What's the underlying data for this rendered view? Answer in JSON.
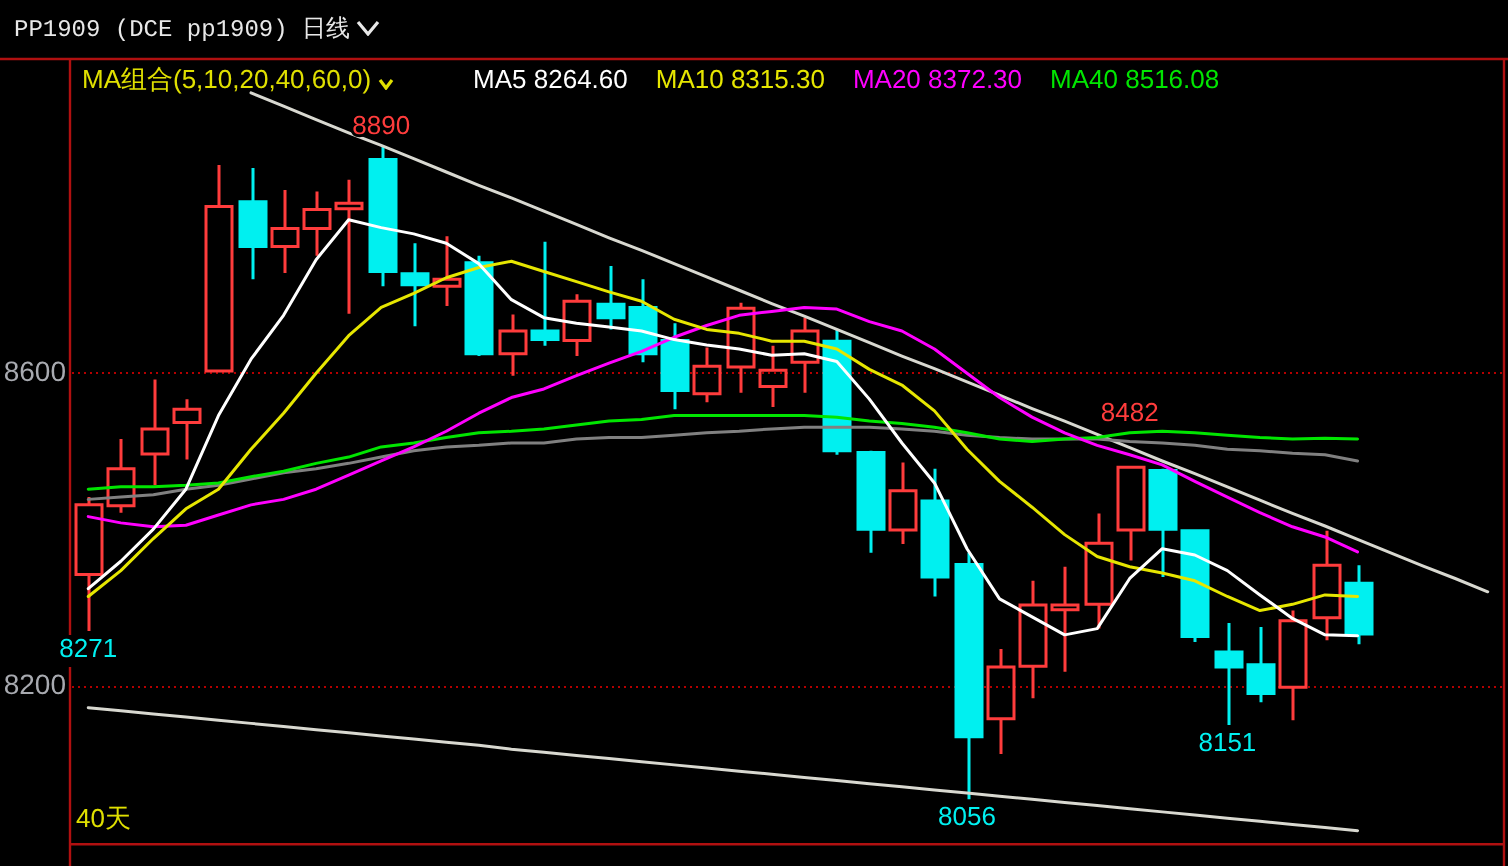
{
  "chart_data": {
    "type": "candlestick",
    "title": "PP1909 (DCE pp1909) 日线",
    "legend_title": "MA组合(5,10,20,40,60,0)",
    "categories": [
      null,
      null,
      null,
      null,
      null,
      null,
      null,
      null,
      null,
      null,
      null,
      null,
      null,
      null,
      null,
      null,
      null,
      null,
      null,
      null,
      null,
      null,
      null,
      null,
      null,
      null,
      null,
      null,
      null,
      null,
      null,
      null,
      null,
      null,
      null,
      null,
      null,
      null,
      null,
      null,
      null,
      null,
      null,
      null
    ],
    "ohlc": [
      [
        8343,
        8442,
        8271,
        8432
      ],
      [
        8431,
        8516,
        8422,
        8478
      ],
      [
        8497,
        8592,
        8457,
        8529
      ],
      [
        8537,
        8567,
        8490,
        8554
      ],
      [
        8603,
        8866,
        8601,
        8813
      ],
      [
        8819,
        8862,
        8720,
        8762
      ],
      [
        8762,
        8834,
        8728,
        8785
      ],
      [
        8785,
        8832,
        8750,
        8809
      ],
      [
        8810,
        8847,
        8676,
        8817
      ],
      [
        8873,
        8890,
        8711,
        8730
      ],
      [
        8727,
        8766,
        8660,
        8713
      ],
      [
        8711,
        8775,
        8686,
        8720
      ],
      [
        8741,
        8750,
        8622,
        8625
      ],
      [
        8625,
        8675,
        8597,
        8654
      ],
      [
        8654,
        8768,
        8635,
        8643
      ],
      [
        8642,
        8701,
        8622,
        8692
      ],
      [
        8688,
        8737,
        8656,
        8671
      ],
      [
        8684,
        8720,
        8614,
        8625
      ],
      [
        8642,
        8664,
        8554,
        8578
      ],
      [
        8574,
        8633,
        8563,
        8609
      ],
      [
        8608,
        8690,
        8575,
        8683
      ],
      [
        8583,
        8635,
        8557,
        8604
      ],
      [
        8614,
        8671,
        8575,
        8654
      ],
      [
        8641,
        8656,
        8496,
        8501
      ],
      [
        8499,
        8501,
        8371,
        8401
      ],
      [
        8400,
        8486,
        8382,
        8450
      ],
      [
        8437,
        8478,
        8315,
        8340
      ],
      [
        8356,
        8371,
        8056,
        8136
      ],
      [
        8159,
        8248,
        8114,
        8225
      ],
      [
        8226,
        8335,
        8185,
        8304
      ],
      [
        8298,
        8353,
        8219,
        8304
      ],
      [
        8305,
        8421,
        8274,
        8383
      ],
      [
        8400,
        8482,
        8361,
        8480
      ],
      [
        8476,
        8478,
        8340,
        8401
      ],
      [
        8399,
        8400,
        8257,
        8264
      ],
      [
        8244,
        8281,
        8151,
        8225
      ],
      [
        8228,
        8276,
        8180,
        8191
      ],
      [
        8199,
        8297,
        8157,
        8284
      ],
      [
        8288,
        8399,
        8259,
        8355
      ],
      [
        8332,
        8355,
        8254,
        8267
      ],
      null,
      null,
      null,
      null
    ],
    "colors": [
      "#ff3c3c",
      "#ff3c3c",
      "#ff3c3c",
      "#ff3c3c",
      "#ff3c3c",
      "#00f0f0",
      "#ff3c3c",
      "#ff3c3c",
      "#ff3c3c",
      "#00f0f0",
      "#00f0f0",
      "#ff3c3c",
      "#00f0f0",
      "#ff3c3c",
      "#00f0f0",
      "#ff3c3c",
      "#00f0f0",
      "#00f0f0",
      "#00f0f0",
      "#ff3c3c",
      "#ff3c3c",
      "#ff3c3c",
      "#ff3c3c",
      "#00f0f0",
      "#00f0f0",
      "#ff3c3c",
      "#00f0f0",
      "#00f0f0",
      "#ff3c3c",
      "#ff3c3c",
      "#ff3c3c",
      "#ff3c3c",
      "#ff3c3c",
      "#00f0f0",
      "#00f0f0",
      "#00f0f0",
      "#00f0f0",
      "#ff3c3c",
      "#ff3c3c",
      "#00f0f0",
      null,
      null,
      null,
      null
    ],
    "series": [
      {
        "type": "line",
        "name": "MA5 8264.60",
        "color": "#ffffff",
        "values": [
          8325,
          8360,
          8401,
          8452,
          8546,
          8618,
          8674,
          8745,
          8796,
          8786,
          8778,
          8766,
          8740,
          8694,
          8671,
          8664,
          8659,
          8654,
          8643,
          8636,
          8631,
          8623,
          8625,
          8615,
          8567,
          8511,
          8460,
          8376,
          8312,
          8289,
          8266,
          8274,
          8338,
          8376,
          8368,
          8348,
          8317,
          8287,
          8266,
          8265,
          null,
          null,
          null,
          null
        ]
      },
      {
        "type": "line",
        "name": "MA10 8315.30",
        "color": "#e6e600",
        "values": [
          8315,
          8348,
          8389,
          8427,
          8452,
          8503,
          8549,
          8600,
          8648,
          8684,
          8702,
          8722,
          8735,
          8743,
          8730,
          8717,
          8704,
          8692,
          8669,
          8656,
          8651,
          8641,
          8641,
          8631,
          8605,
          8585,
          8552,
          8503,
          8462,
          8429,
          8394,
          8366,
          8353,
          8345,
          8335,
          8315,
          8297,
          8305,
          8317,
          8315,
          null,
          null,
          null,
          null
        ]
      },
      {
        "type": "line",
        "name": "MA20 8372.30",
        "color": "#ff00ff",
        "values": [
          8417,
          8409,
          8404,
          8406,
          8419,
          8432,
          8439,
          8452,
          8470,
          8488,
          8506,
          8526,
          8549,
          8569,
          8580,
          8597,
          8613,
          8628,
          8646,
          8661,
          8674,
          8679,
          8684,
          8682,
          8666,
          8654,
          8631,
          8600,
          8569,
          8544,
          8524,
          8508,
          8496,
          8483,
          8462,
          8442,
          8422,
          8404,
          8391,
          8372,
          null,
          null,
          null,
          null
        ]
      },
      {
        "type": "line",
        "name": "MA40 8516.08",
        "color": "#00e600",
        "values": [
          8452,
          8455,
          8455,
          8457,
          8460,
          8468,
          8475,
          8485,
          8493,
          8506,
          8511,
          8518,
          8524,
          8526,
          8529,
          8534,
          8539,
          8541,
          8546,
          8546,
          8546,
          8546,
          8546,
          8544,
          8539,
          8536,
          8531,
          8524,
          8516,
          8513,
          8516,
          8518,
          8524,
          8526,
          8524,
          8521,
          8518,
          8516,
          8517,
          8516,
          null,
          null,
          null,
          null
        ]
      },
      {
        "type": "line",
        "color": "#808080",
        "values": [
          8439,
          8442,
          8445,
          8452,
          8457,
          8465,
          8473,
          8478,
          8485,
          8493,
          8501,
          8506,
          8508,
          8511,
          8511,
          8516,
          8518,
          8518,
          8521,
          8524,
          8526,
          8529,
          8531,
          8531,
          8531,
          8529,
          8526,
          8521,
          8518,
          8516,
          8516,
          8516,
          8513,
          8511,
          8508,
          8503,
          8501,
          8498,
          8496,
          8488,
          null,
          null,
          null,
          null
        ]
      },
      {
        "type": "line",
        "color": "#d8d8d0",
        "values": [
          null,
          null,
          null,
          null,
          null,
          8958,
          8941,
          8924,
          8907,
          8891,
          8874,
          8857,
          8840,
          8824,
          8807,
          8790,
          8773,
          8757,
          8740,
          8723,
          8706,
          8689,
          8673,
          8656,
          8639,
          8622,
          8606,
          8589,
          8572,
          8555,
          8539,
          8522,
          8505,
          8488,
          8472,
          8455,
          8438,
          8421,
          8405,
          8388,
          8371,
          8354,
          8338,
          8321
        ]
      },
      {
        "type": "line",
        "color": "#d8d8d0",
        "values": [
          8173,
          8169,
          8165,
          8161,
          8157,
          8153,
          8149,
          8145,
          8141,
          8137,
          8133,
          8129,
          8125,
          8120,
          8116,
          8112,
          8108,
          8104,
          8100,
          8096,
          8092,
          8088,
          8084,
          8080,
          8076,
          8072,
          8068,
          8064,
          8060,
          8056,
          8052,
          8048,
          8044,
          8040,
          8036,
          8032,
          8028,
          8024,
          8020,
          8016,
          null,
          null,
          null,
          null
        ]
      }
    ],
    "ylim": [
      8000,
      9000
    ],
    "yticks": [
      8600,
      8200
    ],
    "grid": "y",
    "legend": "top left",
    "tick_labels": "y",
    "annotations": [
      {
        "text": "8890",
        "y": 8890
      },
      {
        "text": "8482",
        "y": 8482
      },
      {
        "text": "8271",
        "y": 8271
      },
      {
        "text": "8151",
        "y": 8151
      },
      {
        "text": "8056",
        "y": 8056
      },
      "40天"
    ]
  }
}
